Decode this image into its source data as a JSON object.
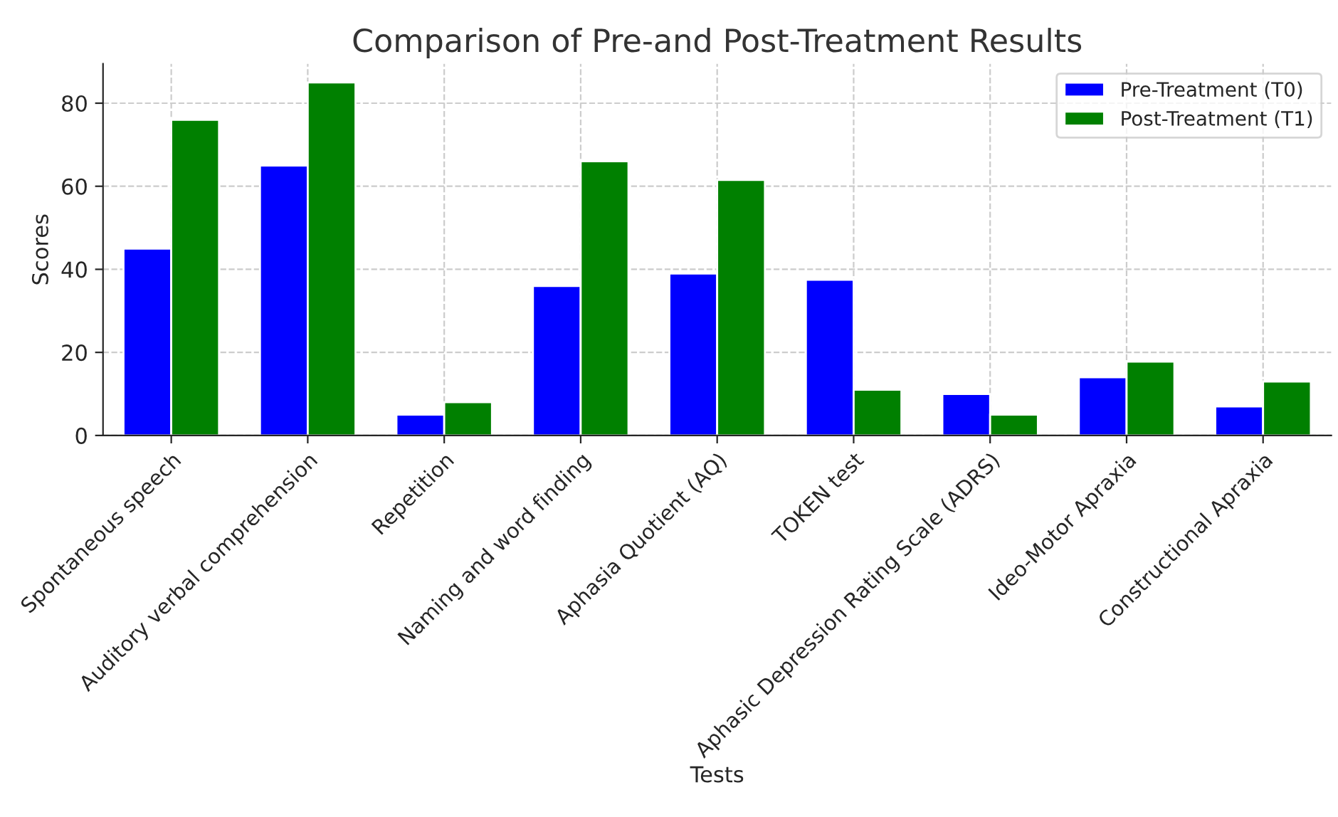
{
  "chart_data": {
    "type": "bar",
    "title": "Comparison of Pre-and Post-Treatment Results",
    "xlabel": "Tests",
    "ylabel": "Scores",
    "categories": [
      "Spontaneous speech",
      "Auditory verbal comprehension",
      "Repetition",
      "Naming and word finding",
      "Aphasia Quotient (AQ)",
      "TOKEN test",
      "Aphasic Depression Rating Scale (ADRS)",
      "Ideo-Motor Apraxia",
      "Constructional Apraxia"
    ],
    "series": [
      {
        "name": "Pre-Treatment (T0)",
        "color": "#0000ff",
        "values": [
          45,
          65,
          5,
          36,
          39,
          37.5,
          10,
          14,
          7
        ]
      },
      {
        "name": "Post-Treatment (T1)",
        "color": "#008000",
        "values": [
          76,
          85,
          8,
          66,
          61.5,
          11,
          5,
          17.8,
          13
        ]
      }
    ],
    "ylim": [
      0,
      89.5
    ],
    "yticks": [
      0,
      20,
      40,
      60,
      80
    ],
    "grid": true,
    "legend": "top right"
  }
}
